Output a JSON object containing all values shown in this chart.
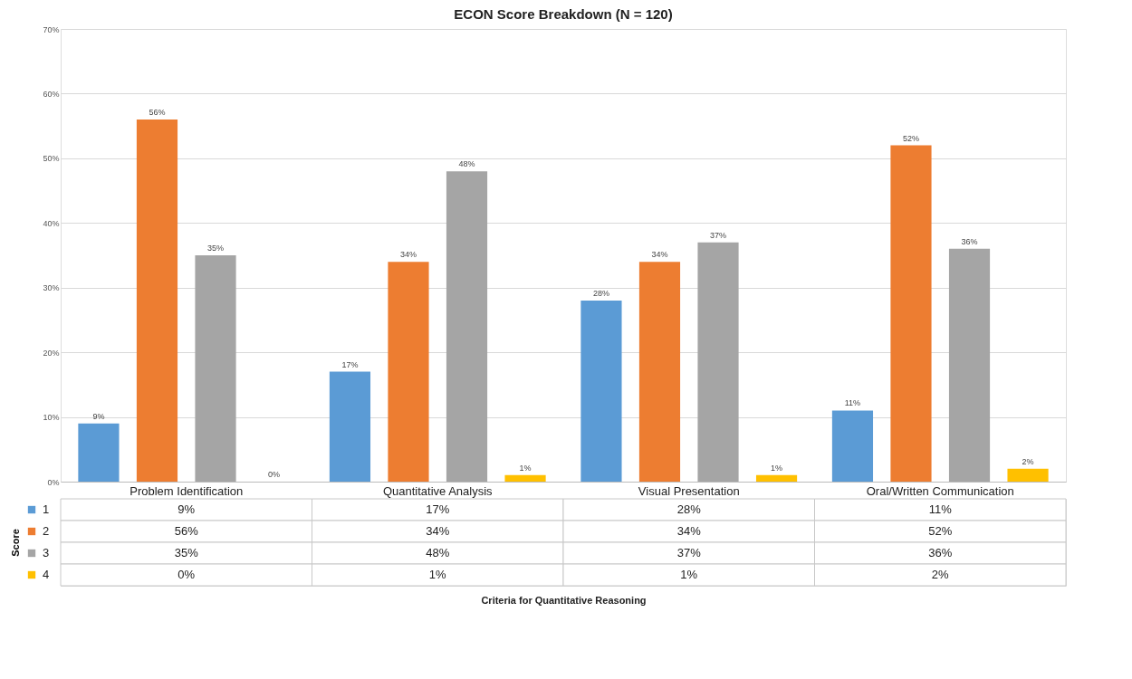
{
  "chart_data": {
    "type": "bar",
    "title": "ECON Score Breakdown (N = 120)",
    "annotations": [
      "Criteria for Quantitative Reasoning"
    ],
    "ylabel": "Score",
    "categories": [
      "Problem Identification",
      "Quantitative Analysis",
      "Visual Presentation",
      "Oral/Written Communication"
    ],
    "series": [
      {
        "name": "1",
        "color": "#5b9bd5",
        "values": [
          9,
          17,
          28,
          11
        ],
        "value_labels": [
          "9%",
          "17%",
          "28%",
          "11%"
        ]
      },
      {
        "name": "2",
        "color": "#ed7d31",
        "values": [
          56,
          34,
          34,
          52
        ],
        "value_labels": [
          "56%",
          "34%",
          "34%",
          "52%"
        ]
      },
      {
        "name": "3",
        "color": "#a5a5a5",
        "values": [
          35,
          48,
          37,
          36
        ],
        "value_labels": [
          "35%",
          "48%",
          "37%",
          "36%"
        ]
      },
      {
        "name": "4",
        "color": "#ffc000",
        "values": [
          0,
          1,
          1,
          2
        ],
        "value_labels": [
          "0%",
          "1%",
          "1%",
          "2%"
        ]
      }
    ],
    "ylim": [
      0,
      70
    ],
    "yticks": [
      {
        "value": 0,
        "label": "0%"
      },
      {
        "value": 10,
        "label": "10%"
      },
      {
        "value": 20,
        "label": "20%"
      },
      {
        "value": 30,
        "label": "30%"
      },
      {
        "value": 40,
        "label": "40%"
      },
      {
        "value": 50,
        "label": "50%"
      },
      {
        "value": 60,
        "label": "60%"
      },
      {
        "value": 70,
        "label": "70%"
      }
    ],
    "grid": "y",
    "legend": "bottom"
  }
}
